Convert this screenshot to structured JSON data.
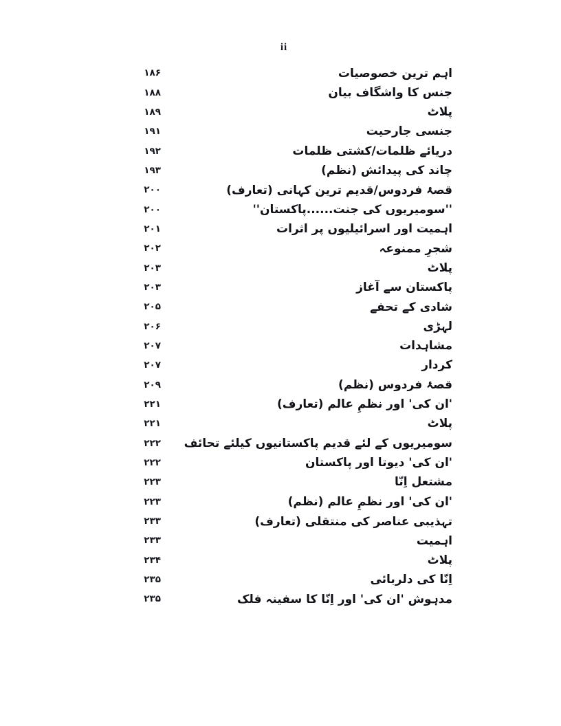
{
  "page": {
    "header_page_number": "ii"
  },
  "toc": {
    "entries": [
      {
        "title": "اہم ترین خصوصیات",
        "page_number": "۱۸۶"
      },
      {
        "title": "جنس کا واشگاف بیان",
        "page_number": "۱۸۸"
      },
      {
        "title": "پلاٹ",
        "page_number": "۱۸۹"
      },
      {
        "title": "جنسی جارحیت",
        "page_number": "۱۹۱"
      },
      {
        "title": "دریائے ظلمات/کشتی ظلمات",
        "page_number": "۱۹۲"
      },
      {
        "title": "چاند کی پیدائش (نظم)",
        "page_number": "۱۹۳"
      },
      {
        "title": "قصۂ فردوس/قدیم ترین کہانی (تعارف)",
        "page_number": "۲۰۰"
      },
      {
        "title": "''سومیریوں کی جنت......پاکستان''",
        "page_number": "۲۰۰"
      },
      {
        "title": "اہمیت اور اسرائیلیوں پر اثرات",
        "page_number": "۲۰۱"
      },
      {
        "title": "شجرِ ممنوعہ",
        "page_number": "۲۰۲"
      },
      {
        "title": "پلاٹ",
        "page_number": "۲۰۳"
      },
      {
        "title": "پاکستان سے آغاز",
        "page_number": "۲۰۳"
      },
      {
        "title": "شادی کے تحفے",
        "page_number": "۲۰۵"
      },
      {
        "title": "لہڑی",
        "page_number": "۲۰۶"
      },
      {
        "title": "مشاہدات",
        "page_number": "۲۰۷"
      },
      {
        "title": "کردار",
        "page_number": "۲۰۷"
      },
      {
        "title": "قصۂ فردوس (نظم)",
        "page_number": "۲۰۹"
      },
      {
        "title": "'ان کی' اور نظمِ عالم (تعارف)",
        "page_number": "۲۲۱"
      },
      {
        "title": "پلاٹ",
        "page_number": "۲۲۱"
      },
      {
        "title": "سومیریوں کے لئے قدیم پاکستانیوں کیلئے تحائف",
        "page_number": "۲۲۲"
      },
      {
        "title": "'ان کی' دیوتا اور پاکستان",
        "page_number": "۲۲۲"
      },
      {
        "title": "مشتعل اِنّا",
        "page_number": "۲۲۳"
      },
      {
        "title": "'ان کی' اور نظمِ عالم (نظم)",
        "page_number": "۲۲۳"
      },
      {
        "title": "تہذیبی عناصر کی منتقلی (تعارف)",
        "page_number": "۲۳۳"
      },
      {
        "title": "اہمیت",
        "page_number": "۲۳۳"
      },
      {
        "title": "پلاٹ",
        "page_number": "۲۳۴"
      },
      {
        "title": "اِنّا کی دلربائی",
        "page_number": "۲۳۵"
      },
      {
        "title": "مدہوش 'ان کی' اور اِنّا کا سفینہ فلک",
        "page_number": "۲۳۵"
      }
    ]
  }
}
